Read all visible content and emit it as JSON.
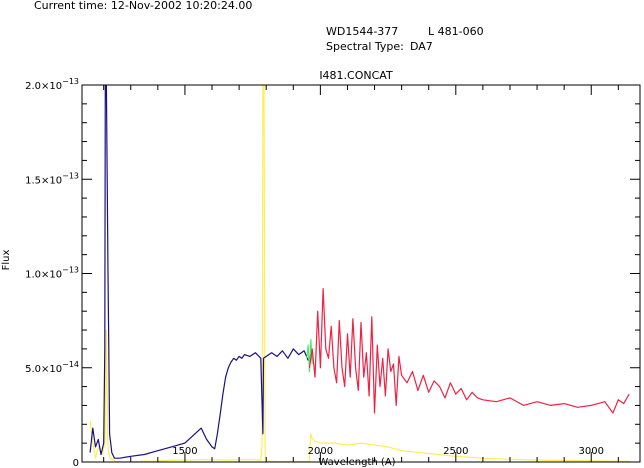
{
  "header": {
    "current_time": "Current time: 12-Nov-2002 10:20:24.00",
    "object": "WD1544-377",
    "alt_name": "L 481-060",
    "spectral_type_label": "Spectral Type:",
    "spectral_type": "DA7"
  },
  "chart_data": {
    "type": "line",
    "title": "I481.CONCAT",
    "xlabel": "Wavelength (A)",
    "ylabel": "Flux",
    "xlim": [
      1120,
      3180
    ],
    "ylim": [
      0,
      2e-13
    ],
    "xticks": [
      {
        "value": 1500,
        "label": "1500"
      },
      {
        "value": 2000,
        "label": "2000"
      },
      {
        "value": 2500,
        "label": "2500"
      },
      {
        "value": 3000,
        "label": "3000"
      }
    ],
    "yticks": [
      {
        "value": 0,
        "mantissa": "0",
        "exponent": ""
      },
      {
        "value": 5e-14,
        "mantissa": "5.0×10",
        "exponent": "−14"
      },
      {
        "value": 1e-13,
        "mantissa": "1.0×10",
        "exponent": "−13"
      },
      {
        "value": 1.5e-13,
        "mantissa": "1.5×10",
        "exponent": "−13"
      },
      {
        "value": 2e-13,
        "mantissa": "2.0×10",
        "exponent": "−13"
      }
    ],
    "grid": false,
    "series": [
      {
        "color": "#ffee55",
        "x": [
          1150,
          1160,
          1170,
          1180,
          1195,
          1205,
          1210,
          1215,
          1218,
          1222,
          1226,
          1230,
          1240,
          1260,
          1300,
          1350,
          1400,
          1450,
          1500,
          1550,
          1600,
          1650,
          1700,
          1750,
          1780,
          1785,
          1788,
          1792,
          1796,
          1800,
          1850,
          1900,
          1950,
          1960,
          1964,
          1968,
          1980,
          2000,
          2050,
          2100,
          2150,
          2200,
          2250,
          2300,
          2400,
          2500,
          2600,
          2700,
          2800,
          2900,
          3000,
          3100,
          3140
        ],
        "y": [
          2.2e-14,
          1e-14,
          2e-15,
          8e-15,
          4e-15,
          1e-14,
          7e-14,
          1.2e-14,
          5e-15,
          3e-15,
          1.5e-15,
          2e-15,
          5e-16,
          1e-16,
          1e-16,
          5e-16,
          5e-16,
          1e-15,
          1e-15,
          1.2e-15,
          1.2e-15,
          1e-15,
          1.2e-15,
          1.2e-15,
          1e-15,
          1e-14,
          2e-13,
          2e-13,
          2e-15,
          5e-16,
          2e-16,
          3e-16,
          2e-16,
          3e-16,
          1.5e-14,
          1.3e-14,
          1.1e-14,
          1e-14,
          1e-14,
          9e-15,
          1e-14,
          9e-15,
          8e-15,
          6e-15,
          4.5e-15,
          3e-15,
          2e-15,
          1.5e-15,
          1e-15,
          8e-16,
          6e-16,
          4e-16,
          3e-16
        ]
      },
      {
        "color": "#1a1080",
        "x": [
          1150,
          1160,
          1170,
          1180,
          1190,
          1200,
          1204,
          1206,
          1210,
          1213,
          1216,
          1219,
          1222,
          1224,
          1226,
          1230,
          1240,
          1260,
          1300,
          1350,
          1400,
          1450,
          1500,
          1530,
          1560,
          1580,
          1600,
          1610,
          1620,
          1630,
          1640,
          1650,
          1660,
          1670,
          1680,
          1690,
          1700,
          1710,
          1720,
          1740,
          1760,
          1780,
          1788,
          1790,
          1800,
          1820,
          1840,
          1860,
          1880,
          1900,
          1920,
          1940,
          1955,
          1970
        ],
        "y": [
          5e-15,
          1.8e-14,
          8e-15,
          1.2e-14,
          4e-15,
          1e-14,
          6e-14,
          2e-13,
          2e-13,
          1.5e-13,
          1e-13,
          6e-14,
          1.5e-14,
          1.2e-14,
          1e-14,
          5e-15,
          2e-15,
          2e-15,
          3e-15,
          4e-15,
          6e-15,
          8e-15,
          1e-14,
          1.4e-14,
          1.8e-14,
          1.2e-14,
          8e-15,
          7e-15,
          1.5e-14,
          2.5e-14,
          3.6e-14,
          4.5e-14,
          5e-14,
          5.3e-14,
          5.5e-14,
          5.4e-14,
          5.6e-14,
          5.5e-14,
          5.7e-14,
          5.6e-14,
          5.8e-14,
          5.5e-14,
          1.5e-14,
          5.5e-14,
          5.6e-14,
          5.8e-14,
          5.6e-14,
          5.9e-14,
          5.5e-14,
          6e-14,
          5.7e-14,
          5.9e-14,
          5.4e-14,
          5.8e-14
        ]
      },
      {
        "color": "#44ee66",
        "x": [
          1950,
          1955,
          1960,
          1965,
          1970
        ],
        "y": [
          5.5e-14,
          6.2e-14,
          4.8e-14,
          6.5e-14,
          5.2e-14
        ]
      },
      {
        "color": "#ee2244",
        "x": [
          1960,
          1970,
          1980,
          1990,
          2000,
          2010,
          2020,
          2030,
          2040,
          2050,
          2060,
          2070,
          2080,
          2090,
          2100,
          2110,
          2120,
          2130,
          2140,
          2150,
          2160,
          2170,
          2180,
          2190,
          2200,
          2210,
          2220,
          2230,
          2240,
          2250,
          2260,
          2270,
          2280,
          2290,
          2300,
          2320,
          2340,
          2360,
          2380,
          2400,
          2420,
          2440,
          2460,
          2480,
          2500,
          2520,
          2540,
          2560,
          2580,
          2600,
          2650,
          2700,
          2750,
          2800,
          2850,
          2900,
          2950,
          3000,
          3050,
          3080,
          3100,
          3120,
          3140
        ],
        "y": [
          5e-14,
          6e-14,
          4.5e-14,
          8e-14,
          5e-14,
          9.2e-14,
          6e-14,
          5.5e-14,
          7.2e-14,
          5e-14,
          4.2e-14,
          7.5e-14,
          5e-14,
          4e-14,
          6.8e-14,
          4.5e-14,
          7.6e-14,
          5e-14,
          3.8e-14,
          7.4e-14,
          4.5e-14,
          5.8e-14,
          3.5e-14,
          7.7e-14,
          2.6e-14,
          6.2e-14,
          4e-14,
          5.5e-14,
          3.5e-14,
          6e-14,
          4.8e-14,
          5.2e-14,
          3e-14,
          5.6e-14,
          4.6e-14,
          4.2e-14,
          4.8e-14,
          3.8e-14,
          4.6e-14,
          3.7e-14,
          4.3e-14,
          4e-14,
          3.4e-14,
          4.2e-14,
          3.6e-14,
          3.9e-14,
          3.3e-14,
          3.7e-14,
          3.4e-14,
          3.3e-14,
          3.2e-14,
          3.4e-14,
          3e-14,
          3.2e-14,
          3e-14,
          3.1e-14,
          2.9e-14,
          3e-14,
          3.2e-14,
          2.6e-14,
          3.3e-14,
          3.1e-14,
          3.6e-14
        ]
      }
    ]
  }
}
